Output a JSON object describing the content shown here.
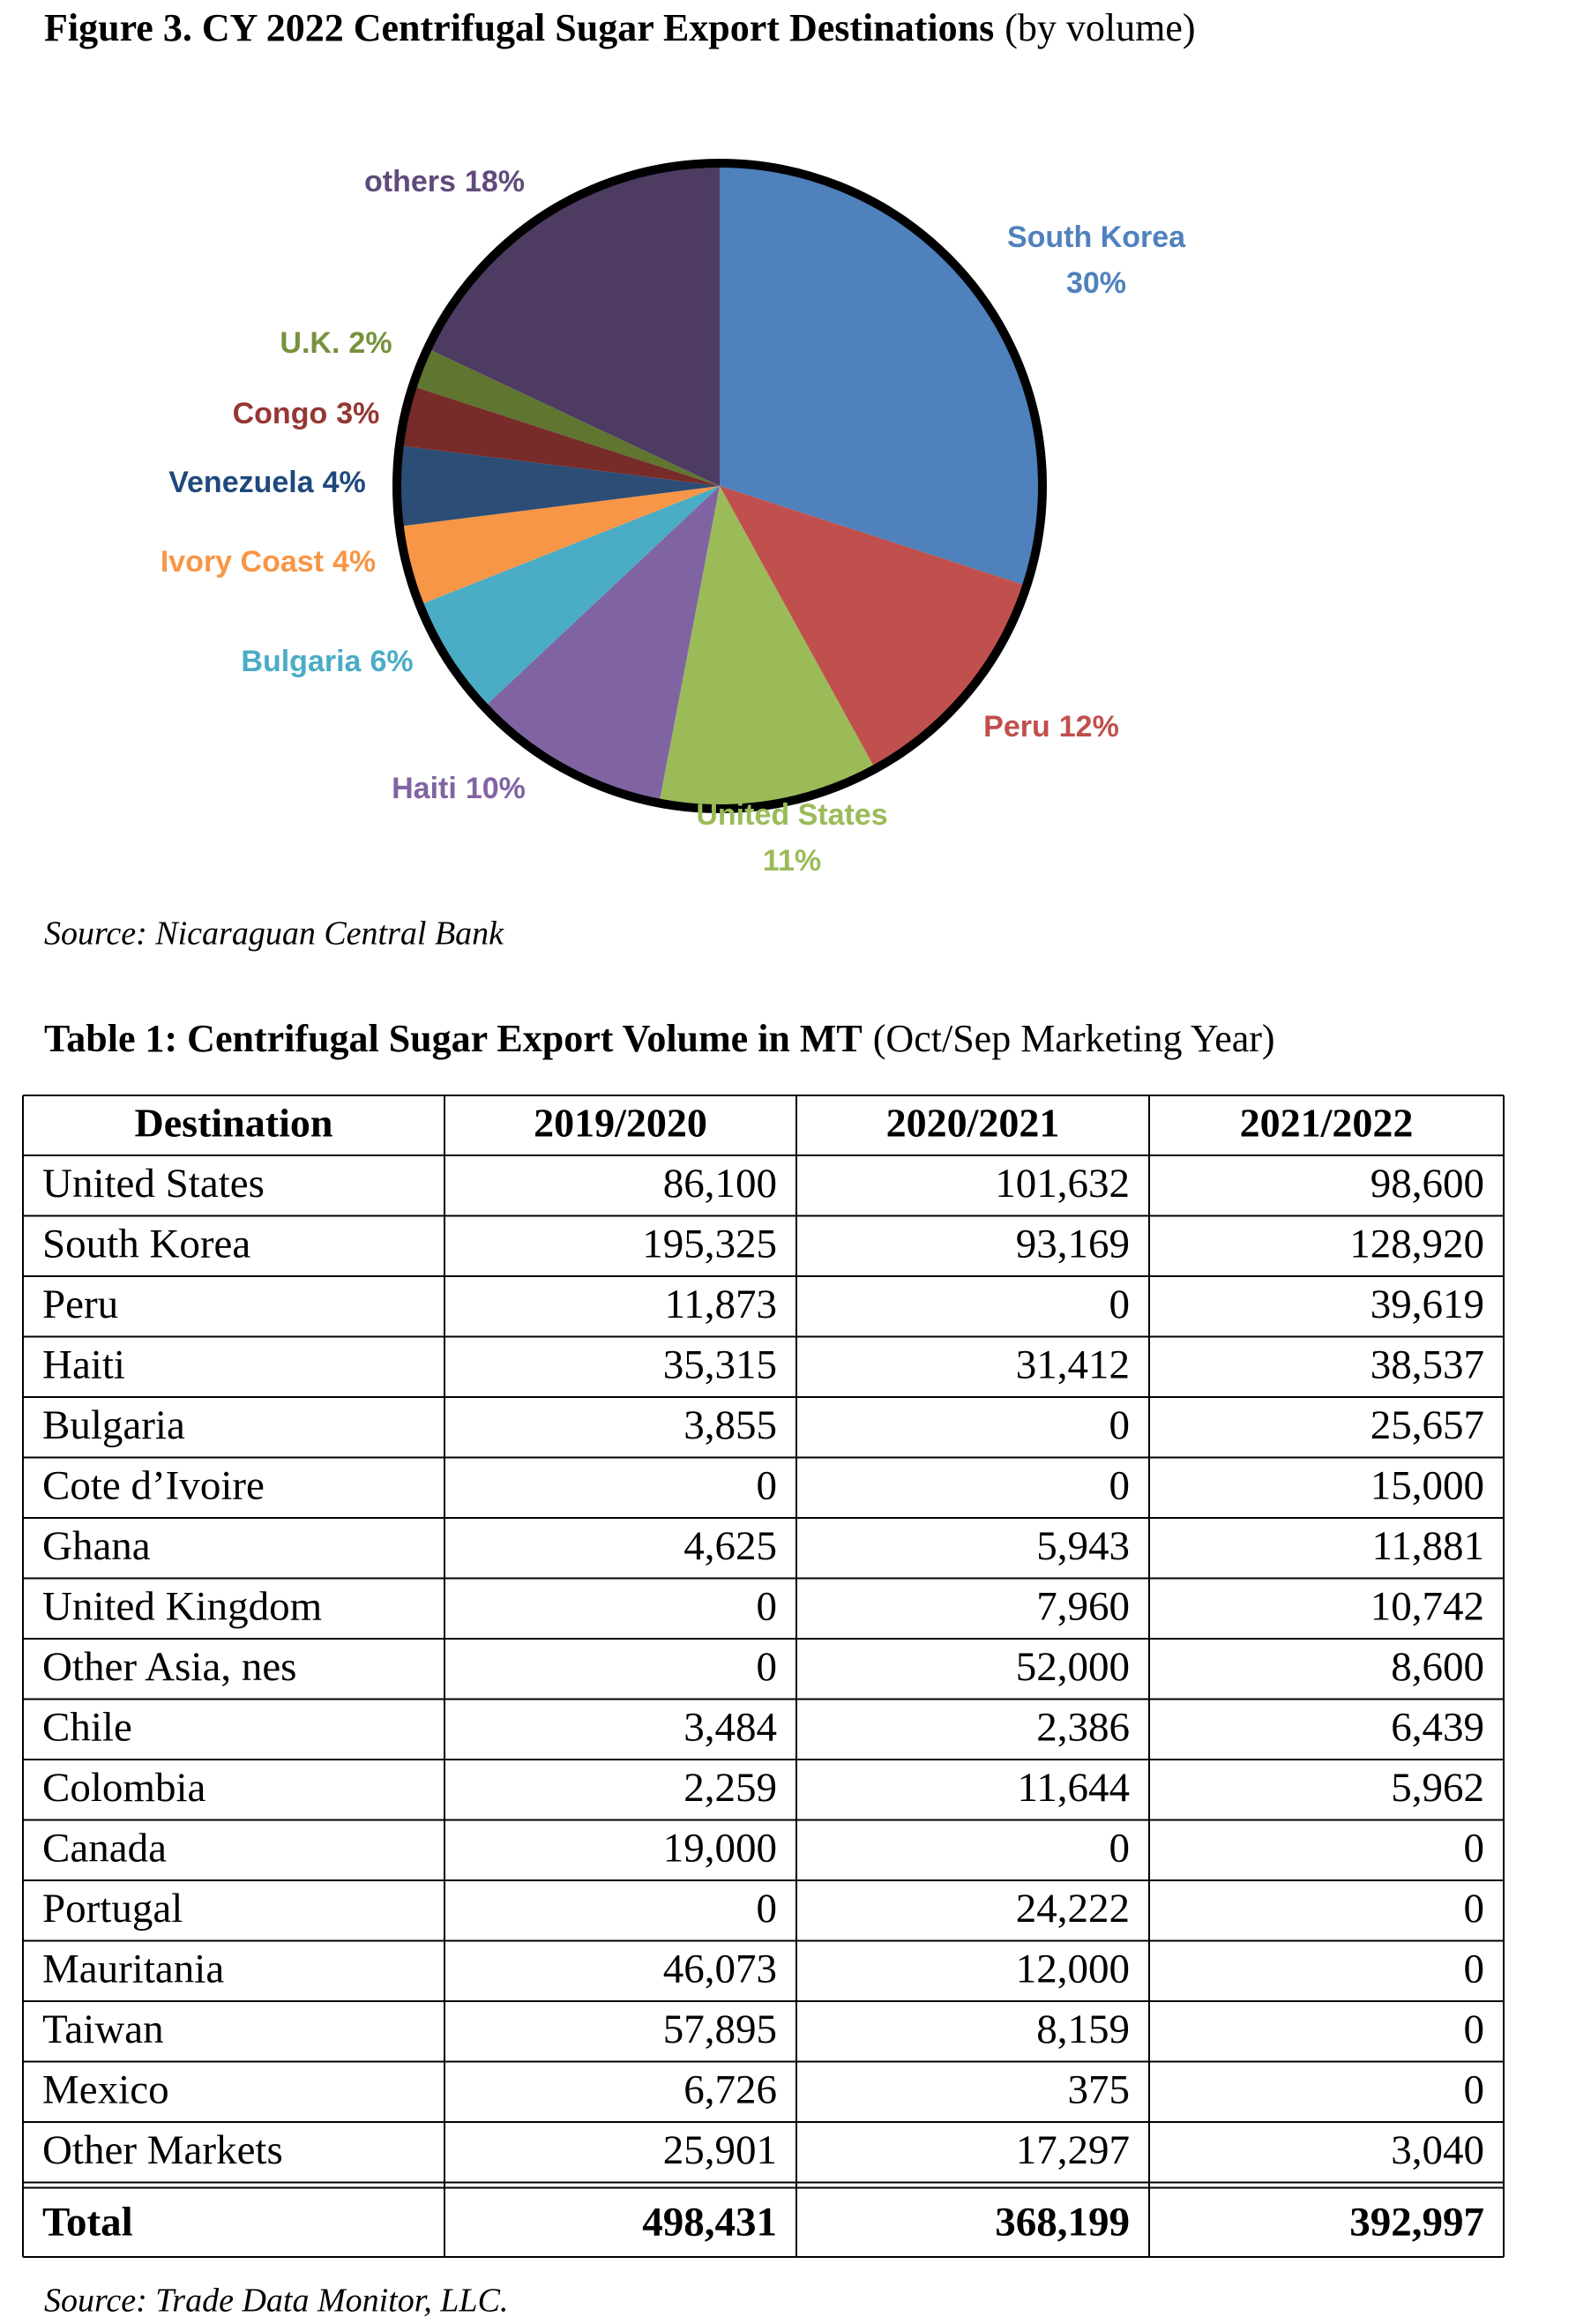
{
  "chart_data": {
    "type": "pie",
    "title": "Figure 3. CY 2022 Centrifugal Sugar Export Destinations",
    "subtitle": "(by volume)",
    "categories": [
      "South Korea",
      "Peru",
      "United States",
      "Haiti",
      "Bulgaria",
      "Ivory Coast",
      "Venezuela",
      "Congo",
      "U.K.",
      "others"
    ],
    "values": [
      30,
      12,
      11,
      10,
      6,
      4,
      4,
      3,
      2,
      18
    ],
    "value_labels": [
      "30%",
      "12%",
      "11%",
      "10%",
      "6%",
      "4%",
      "4%",
      "3%",
      "2%",
      "18%"
    ],
    "colors": [
      "#4f81bd",
      "#c0504d",
      "#9bbb59",
      "#8064a2",
      "#4bacc6",
      "#f79646",
      "#2c4d75",
      "#772c2a",
      "#5f7530",
      "#4d3b62"
    ],
    "source": "Source: Nicaraguan Central Bank"
  },
  "table": {
    "title": "Table 1:  Centrifugal Sugar Export Volume in MT",
    "subtitle": "(Oct/Sep Marketing Year)",
    "header": [
      "Destination",
      "2019/2020",
      "2020/2021",
      "2021/2022"
    ],
    "rows": [
      [
        "United States",
        "86,100",
        "101,632",
        "98,600"
      ],
      [
        "South Korea",
        "195,325",
        "93,169",
        "128,920"
      ],
      [
        "Peru",
        "11,873",
        "0",
        "39,619"
      ],
      [
        "Haiti",
        "35,315",
        "31,412",
        "38,537"
      ],
      [
        "Bulgaria",
        "3,855",
        "0",
        "25,657"
      ],
      [
        "Cote d’Ivoire",
        "0",
        "0",
        "15,000"
      ],
      [
        "Ghana",
        "4,625",
        "5,943",
        "11,881"
      ],
      [
        "United Kingdom",
        "0",
        "7,960",
        "10,742"
      ],
      [
        "Other Asia, nes",
        "0",
        "52,000",
        "8,600"
      ],
      [
        "Chile",
        "3,484",
        "2,386",
        "6,439"
      ],
      [
        "Colombia",
        "2,259",
        "11,644",
        "5,962"
      ],
      [
        "Canada",
        "19,000",
        "0",
        "0"
      ],
      [
        "Portugal",
        "0",
        "24,222",
        "0"
      ],
      [
        "Mauritania",
        "46,073",
        "12,000",
        "0"
      ],
      [
        "Taiwan",
        "57,895",
        "8,159",
        "0"
      ],
      [
        "Mexico",
        "6,726",
        "375",
        "0"
      ],
      [
        "Other Markets",
        "25,901",
        "17,297",
        "3,040"
      ]
    ],
    "total": [
      "Total",
      "498,431",
      "368,199",
      "392,997"
    ],
    "source": "Source: Trade Data Monitor, LLC."
  }
}
